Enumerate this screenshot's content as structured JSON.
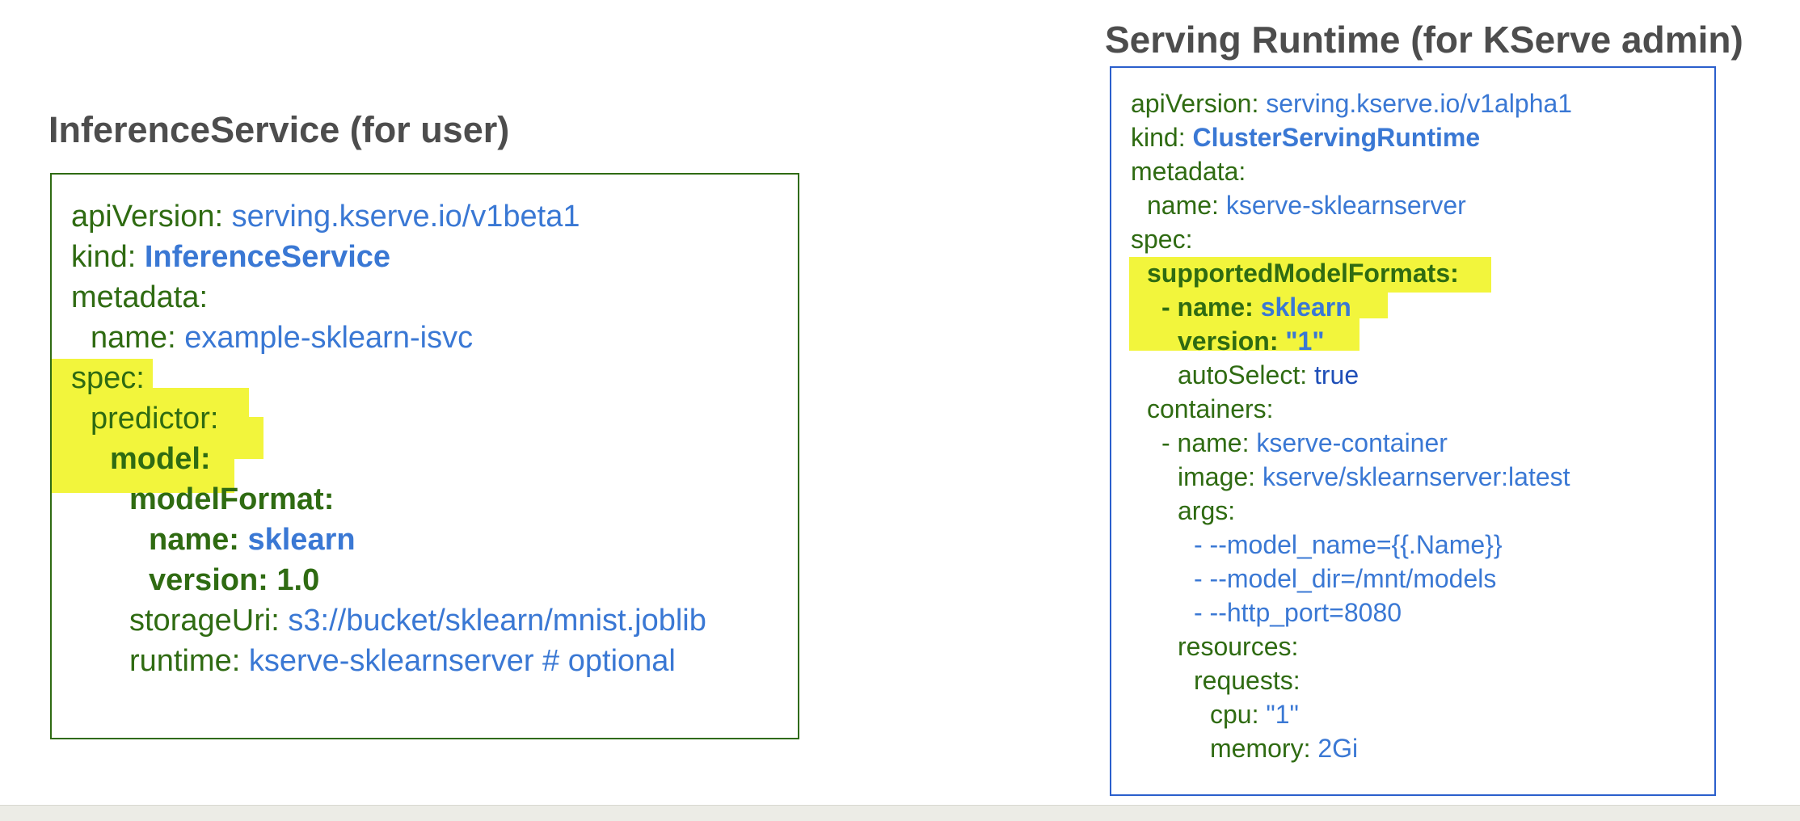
{
  "left_box": {
    "title": "InferenceService (for user)",
    "lines": {
      "api_version_key": "apiVersion",
      "api_version_value": "serving.kserve.io/v1beta1",
      "kind_key": "kind",
      "kind_value": "InferenceService",
      "metadata_key": "metadata",
      "name_key": "name",
      "name_value": "example-sklearn-isvc",
      "spec_key": "spec",
      "predictor_key": "predictor",
      "model_key": "model:",
      "model_format_key": "modelFormat:",
      "format_name_key": "name:",
      "format_name_value": "sklearn",
      "format_version_key": "version:",
      "format_version_value": "1.0",
      "storage_uri_key": "storageUri",
      "storage_uri_value": "s3://bucket/sklearn/mnist.joblib",
      "runtime_key": "runtime",
      "runtime_value": "kserve-sklearnserver # optional"
    }
  },
  "right_box": {
    "title": "Serving Runtime (for KServe admin)",
    "lines": {
      "api_version_key": "apiVersion",
      "api_version_value": "serving.kserve.io/v1alpha1",
      "kind_key": "kind",
      "kind_value": "ClusterServingRuntime",
      "metadata_key": "metadata",
      "name_key": "name",
      "name_value": "kserve-sklearnserver",
      "spec_key": "spec",
      "supported_formats_key": "supportedModelFormats:",
      "format_name_key": "- name:",
      "format_name_value": "sklearn",
      "format_version_key": "version:",
      "format_version_value": "\"1\"",
      "auto_select_key": "autoSelect",
      "auto_select_value": "true",
      "containers_key": "containers",
      "container_name_key": "- name",
      "container_name_value": "kserve-container",
      "image_key": "image",
      "image_value": "kserve/sklearnserver:latest",
      "args_key": "args",
      "arg_1": "- --model_name={{.Name}}",
      "arg_2": "- --model_dir=/mnt/models",
      "arg_3": "- --http_port=8080",
      "resources_key": "resources",
      "requests_key": "requests",
      "cpu_key": "cpu",
      "cpu_value": "\"1\"",
      "memory_key": "memory",
      "memory_value": "2Gi"
    }
  },
  "colors": {
    "key_green": "#2f6b12",
    "value_blue": "#3a78d4",
    "highlight_yellow": "#f2f53c",
    "left_border": "#2f6b12",
    "right_border": "#2b5fcc"
  }
}
